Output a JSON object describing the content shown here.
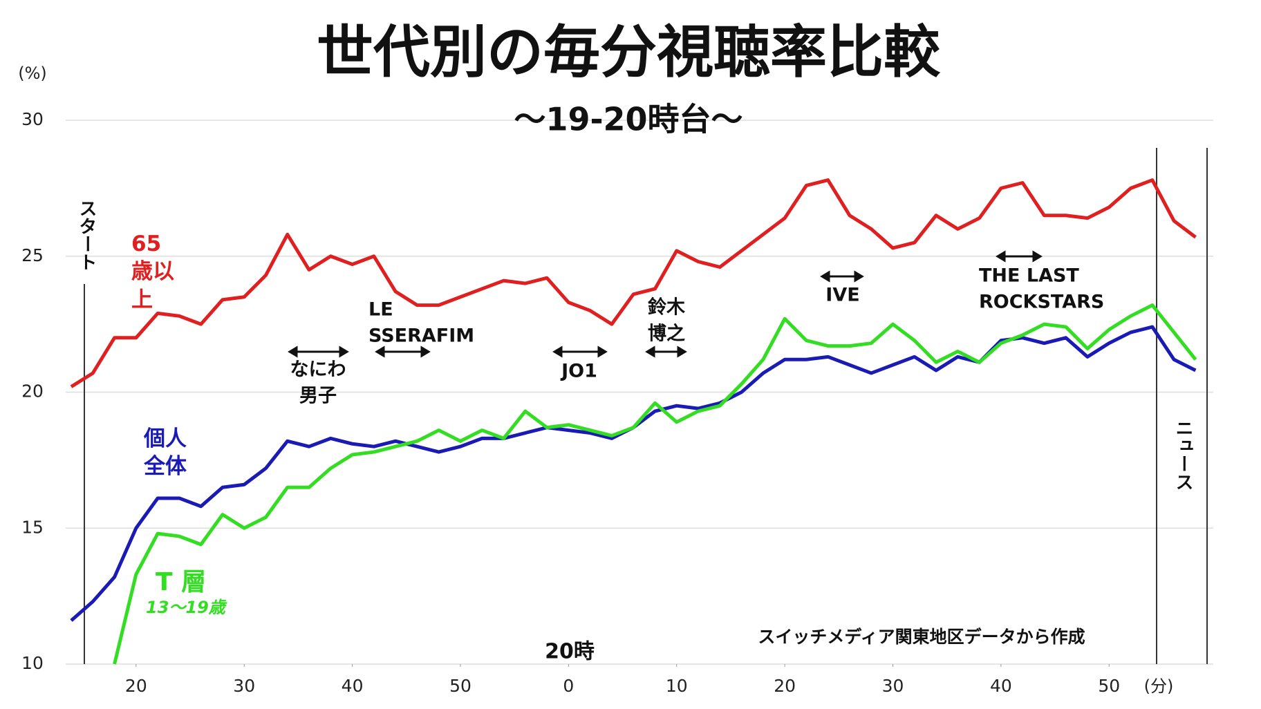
{
  "chart_data": {
    "type": "line",
    "title": "世代別の毎分視聴率比較",
    "subtitle": "～19-20時台～",
    "y_unit": "(%)",
    "x_unit": "(分)",
    "x": [
      14,
      16,
      18,
      20,
      22,
      24,
      26,
      28,
      30,
      32,
      34,
      36,
      38,
      40,
      42,
      44,
      46,
      48,
      50,
      52,
      54,
      56,
      58,
      60,
      62,
      64,
      66,
      68,
      70,
      72,
      74,
      76,
      78,
      80,
      82,
      84,
      86,
      88,
      90,
      92,
      94,
      96,
      98,
      100,
      102,
      104,
      106,
      108,
      110,
      112,
      114,
      116,
      118
    ],
    "series": [
      {
        "name": "65歳以上",
        "color": "#e02020",
        "values": [
          20.2,
          20.7,
          22.0,
          22.0,
          22.9,
          22.8,
          22.5,
          23.4,
          23.5,
          24.3,
          25.8,
          24.5,
          25.0,
          24.7,
          25.0,
          23.7,
          23.2,
          23.2,
          23.5,
          23.8,
          24.1,
          24.0,
          24.2,
          23.3,
          23.0,
          22.5,
          23.6,
          23.8,
          25.2,
          24.8,
          24.6,
          25.2,
          25.8,
          26.4,
          27.6,
          27.8,
          26.5,
          26.0,
          25.3,
          25.5,
          26.5,
          26.0,
          26.4,
          27.5,
          27.7,
          26.5,
          26.5,
          26.4,
          26.8,
          27.5,
          27.8,
          26.3,
          25.7
        ]
      },
      {
        "name": "個人全体",
        "color": "#1a1ab4",
        "values": [
          11.6,
          12.3,
          13.2,
          15.0,
          16.1,
          16.1,
          15.8,
          16.5,
          16.6,
          17.2,
          18.2,
          18.0,
          18.3,
          18.1,
          18.0,
          18.2,
          18.0,
          17.8,
          18.0,
          18.3,
          18.3,
          18.5,
          18.7,
          18.6,
          18.5,
          18.3,
          18.7,
          19.3,
          19.5,
          19.4,
          19.6,
          20.0,
          20.7,
          21.2,
          21.2,
          21.3,
          21.0,
          20.7,
          21.0,
          21.3,
          20.8,
          21.3,
          21.1,
          21.9,
          22.0,
          21.8,
          22.0,
          21.3,
          21.8,
          22.2,
          22.4,
          21.2,
          20.8
        ]
      },
      {
        "name": "T 層",
        "color": "#33dd22",
        "values": [
          null,
          null,
          10.0,
          13.3,
          14.8,
          14.7,
          14.4,
          15.5,
          15.0,
          15.4,
          16.5,
          16.5,
          17.2,
          17.7,
          17.8,
          18.0,
          18.2,
          18.6,
          18.2,
          18.6,
          18.3,
          19.3,
          18.7,
          18.8,
          18.6,
          18.4,
          18.7,
          19.6,
          18.9,
          19.3,
          19.5,
          20.3,
          21.2,
          22.7,
          21.9,
          21.7,
          21.7,
          21.8,
          22.5,
          21.9,
          21.1,
          21.5,
          21.1,
          21.8,
          22.1,
          22.5,
          22.4,
          21.6,
          22.3,
          22.8,
          23.2,
          22.2,
          21.2
        ]
      }
    ],
    "green_sublabel": "13～19歳",
    "xlim": [
      14,
      119
    ],
    "ylim": [
      10,
      30
    ],
    "xticks": [
      20,
      30,
      40,
      50,
      {
        "value": 60,
        "label": "0"
      },
      {
        "value": 70,
        "label": "10"
      },
      {
        "value": 80,
        "label": "20"
      },
      {
        "value": 90,
        "label": "30"
      },
      {
        "value": 100,
        "label": "40"
      },
      {
        "value": 110,
        "label": "50"
      }
    ],
    "yticks": [
      10,
      15,
      20,
      25,
      30
    ],
    "grid": true,
    "markers": {
      "start": "スタート",
      "news": "ニュース",
      "hour": "20時"
    },
    "programs": [
      {
        "lines": [
          "なにわ",
          "男子"
        ]
      },
      {
        "lines": [
          "LE",
          "SSERAFIM"
        ]
      },
      {
        "lines": [
          "JO1"
        ]
      },
      {
        "lines": [
          "鈴木",
          "博之"
        ]
      },
      {
        "lines": [
          "IVE"
        ]
      },
      {
        "lines": [
          "THE LAST",
          "ROCKSTARS"
        ]
      }
    ],
    "source": "スイッチメディア関東地区データから作成"
  }
}
